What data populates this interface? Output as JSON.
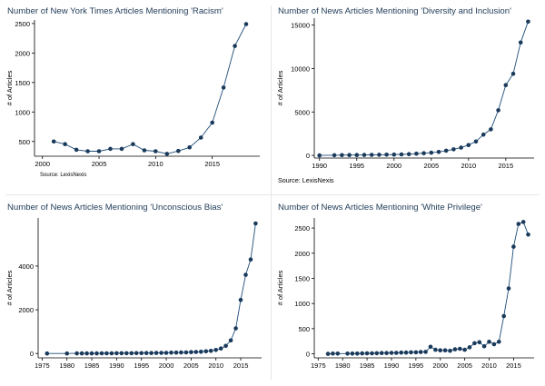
{
  "colors": {
    "series": "#1f4e79",
    "marker": "#1a3a5c",
    "axis": "#000000",
    "title": "#1f3b57"
  },
  "chart_data": [
    {
      "type": "line",
      "title": "Number of New York Times Articles Mentioning 'Racism'",
      "xlabel": "",
      "ylabel": "# of Articles",
      "source": "Source: LexisNexis",
      "xlim": [
        1999.3,
        2019.2
      ],
      "ylim": [
        250,
        2560
      ],
      "xticks": [
        2000,
        2005,
        2010,
        2015
      ],
      "yticks": [
        500,
        1000,
        1500,
        2000,
        2500
      ],
      "x": [
        2001,
        2002,
        2003,
        2004,
        2005,
        2006,
        2007,
        2008,
        2009,
        2010,
        2011,
        2012,
        2013,
        2014,
        2015,
        2016,
        2017,
        2018
      ],
      "y": [
        500,
        455,
        360,
        335,
        335,
        375,
        375,
        455,
        350,
        335,
        290,
        340,
        400,
        565,
        820,
        1415,
        2120,
        2490
      ]
    },
    {
      "type": "line",
      "title": "Number of News Articles Mentioning 'Diversity and Inclusion'",
      "xlabel": "",
      "ylabel": "# of Articles",
      "source": "Source: LexisNexis",
      "xlim": [
        1989.3,
        2018.8
      ],
      "ylim": [
        -300,
        15800
      ],
      "xticks": [
        1990,
        1995,
        2000,
        2005,
        2010,
        2015
      ],
      "yticks": [
        0,
        5000,
        10000,
        15000
      ],
      "x": [
        1990,
        1992,
        1993,
        1994,
        1995,
        1996,
        1997,
        1998,
        1999,
        2000,
        2001,
        2002,
        2003,
        2004,
        2005,
        2006,
        2007,
        2008,
        2009,
        2010,
        2011,
        2012,
        2013,
        2014,
        2015,
        2016,
        2017,
        2018
      ],
      "y": [
        0,
        20,
        30,
        40,
        50,
        60,
        70,
        80,
        90,
        100,
        120,
        150,
        200,
        250,
        320,
        400,
        550,
        700,
        900,
        1200,
        1600,
        2400,
        3000,
        5200,
        8100,
        9400,
        13000,
        15400
      ]
    },
    {
      "type": "line",
      "title": "Number of News Articles Mentioning 'Unconscious Bias'",
      "xlabel": "",
      "ylabel": "# of Articles",
      "source": "",
      "xlim": [
        1974.2,
        2019.2
      ],
      "ylim": [
        -200,
        6200
      ],
      "xticks": [
        1975,
        1980,
        1985,
        1990,
        1995,
        2000,
        2005,
        2010,
        2015
      ],
      "yticks": [
        0,
        2000,
        4000
      ],
      "x": [
        1976,
        1980,
        1982,
        1983,
        1984,
        1985,
        1986,
        1987,
        1988,
        1989,
        1990,
        1991,
        1992,
        1993,
        1994,
        1995,
        1996,
        1997,
        1998,
        1999,
        2000,
        2001,
        2002,
        2003,
        2004,
        2005,
        2006,
        2007,
        2008,
        2009,
        2010,
        2011,
        2012,
        2013,
        2014,
        2015,
        2016,
        2017,
        2018
      ],
      "y": [
        0,
        0,
        2,
        3,
        4,
        5,
        5,
        6,
        7,
        8,
        10,
        10,
        12,
        14,
        15,
        18,
        20,
        22,
        25,
        28,
        30,
        35,
        40,
        45,
        50,
        60,
        70,
        80,
        100,
        120,
        160,
        230,
        350,
        600,
        1150,
        2450,
        3600,
        4300,
        5950
      ]
    },
    {
      "type": "line",
      "title": "Number of News Articles Mentioning 'White Privilege'",
      "xlabel": "",
      "ylabel": "# of Articles",
      "source": "",
      "xlim": [
        1974.2,
        2019.2
      ],
      "ylim": [
        -80,
        2700
      ],
      "xticks": [
        1975,
        1980,
        1985,
        1990,
        1995,
        2000,
        2005,
        2010,
        2015
      ],
      "yticks": [
        0,
        500,
        1000,
        1500,
        2000,
        2500
      ],
      "x": [
        1977,
        1978,
        1979,
        1981,
        1982,
        1983,
        1984,
        1985,
        1986,
        1987,
        1988,
        1989,
        1990,
        1991,
        1992,
        1993,
        1994,
        1995,
        1996,
        1997,
        1998,
        1999,
        2000,
        2001,
        2002,
        2003,
        2004,
        2005,
        2006,
        2007,
        2008,
        2009,
        2010,
        2011,
        2012,
        2013,
        2014,
        2015,
        2016,
        2017,
        2018
      ],
      "y": [
        0,
        5,
        5,
        5,
        5,
        5,
        8,
        10,
        10,
        12,
        15,
        15,
        20,
        20,
        25,
        25,
        30,
        30,
        35,
        40,
        140,
        80,
        70,
        70,
        60,
        90,
        100,
        80,
        130,
        210,
        230,
        150,
        240,
        190,
        240,
        750,
        1300,
        2130,
        2580,
        2620,
        2370
      ]
    }
  ]
}
